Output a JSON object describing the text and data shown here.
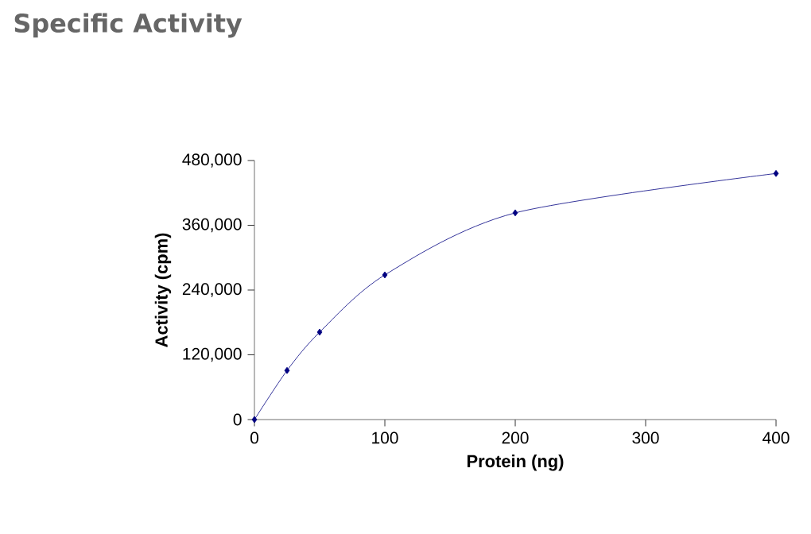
{
  "chart_data": {
    "type": "line",
    "title": "Specific Activity",
    "xlabel": "Protein (ng)",
    "ylabel": "Activity (cpm)",
    "x": [
      0,
      25,
      50,
      100,
      200,
      400
    ],
    "series": [
      {
        "color": "#000080",
        "values": [
          0,
          91000,
          162000,
          268000,
          383000,
          456000
        ]
      }
    ],
    "xlim": [
      0,
      400
    ],
    "xticks": [
      0,
      100,
      200,
      300,
      400
    ],
    "ylim": [
      0,
      480000
    ],
    "yticks": [
      0,
      {
        "value": 120000,
        "label": "120,000"
      },
      {
        "value": 240000,
        "label": "240,000"
      },
      {
        "value": 360000,
        "label": "360,000"
      },
      {
        "value": 480000,
        "label": "480,000"
      }
    ],
    "grid": false,
    "marker": "diamond",
    "line_style": "solid"
  }
}
